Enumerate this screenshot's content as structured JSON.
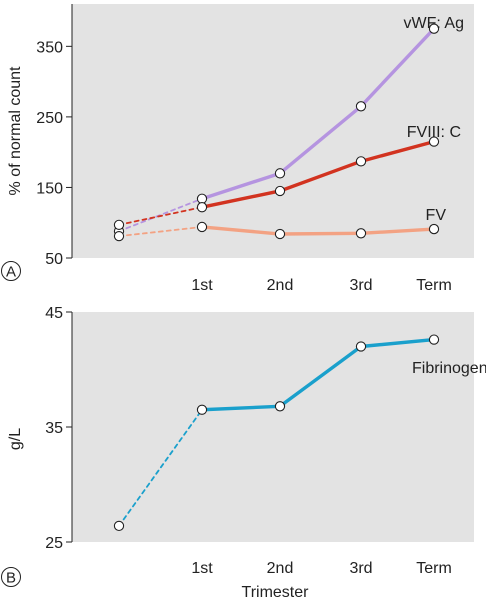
{
  "chart_data": [
    {
      "type": "line",
      "panel_label": "A",
      "ylabel": "% of normal count",
      "yticks": [
        "50",
        "150",
        "250",
        "350"
      ],
      "ylim": [
        50,
        410
      ],
      "categories": [
        "",
        "1st",
        "2nd",
        "3rd",
        "Term"
      ],
      "grid": false,
      "background": "#e3e3e3",
      "series": [
        {
          "name": "vWF: Ag",
          "color": "#b594e0",
          "values": [
            88,
            134,
            170,
            265,
            375
          ],
          "dashed_segments": [
            0
          ]
        },
        {
          "name": "FVIII: C",
          "color": "#d23320",
          "values": [
            97,
            122,
            145,
            187,
            215
          ],
          "dashed_segments": [
            0
          ]
        },
        {
          "name": "FV",
          "color": "#f3a283",
          "values": [
            81,
            94,
            84,
            85,
            91
          ],
          "dashed_segments": [
            0
          ]
        }
      ]
    },
    {
      "type": "line",
      "panel_label": "B",
      "ylabel": "g/L",
      "xlabel": "Trimester",
      "yticks": [
        "25",
        "35",
        "45"
      ],
      "ylim": [
        25,
        45
      ],
      "categories": [
        "",
        "1st",
        "2nd",
        "3rd",
        "Term"
      ],
      "grid": false,
      "background": "#e3e3e3",
      "series": [
        {
          "name": "Fibrinogen",
          "color": "#1aa0cc",
          "values": [
            26.4,
            36.5,
            36.8,
            42.0,
            42.6
          ],
          "dashed_segments": [
            0
          ]
        }
      ]
    }
  ]
}
